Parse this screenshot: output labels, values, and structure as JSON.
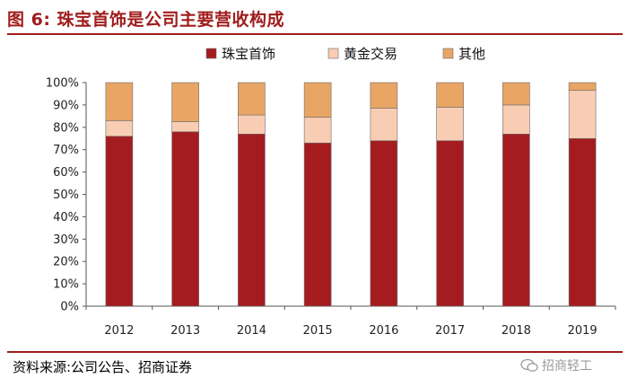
{
  "figure": {
    "title": "图 6:  珠宝首饰是公司主要营收构成",
    "source": "资料来源:公司公告、招商证券",
    "watermark": "招商轻工"
  },
  "chart_data": {
    "type": "bar",
    "stacked": true,
    "categories": [
      "2012",
      "2013",
      "2014",
      "2015",
      "2016",
      "2017",
      "2018",
      "2019"
    ],
    "series": [
      {
        "name": "珠宝首饰",
        "color": "#a51c20",
        "values": [
          76,
          78,
          77,
          73,
          74,
          74,
          77,
          75
        ]
      },
      {
        "name": "黄金交易",
        "color": "#f9cdb4",
        "values": [
          7,
          4.5,
          8.5,
          11.5,
          14.5,
          15,
          13,
          21.5
        ]
      },
      {
        "name": "其他",
        "color": "#e8a564",
        "values": [
          17,
          17.5,
          14.5,
          15.5,
          11.5,
          11,
          10,
          3.5
        ]
      }
    ],
    "ylim": [
      0,
      100
    ],
    "yticks": [
      "0%",
      "10%",
      "20%",
      "30%",
      "40%",
      "50%",
      "60%",
      "70%",
      "80%",
      "90%",
      "100%"
    ],
    "legend_position": "top-center",
    "grid": false
  }
}
